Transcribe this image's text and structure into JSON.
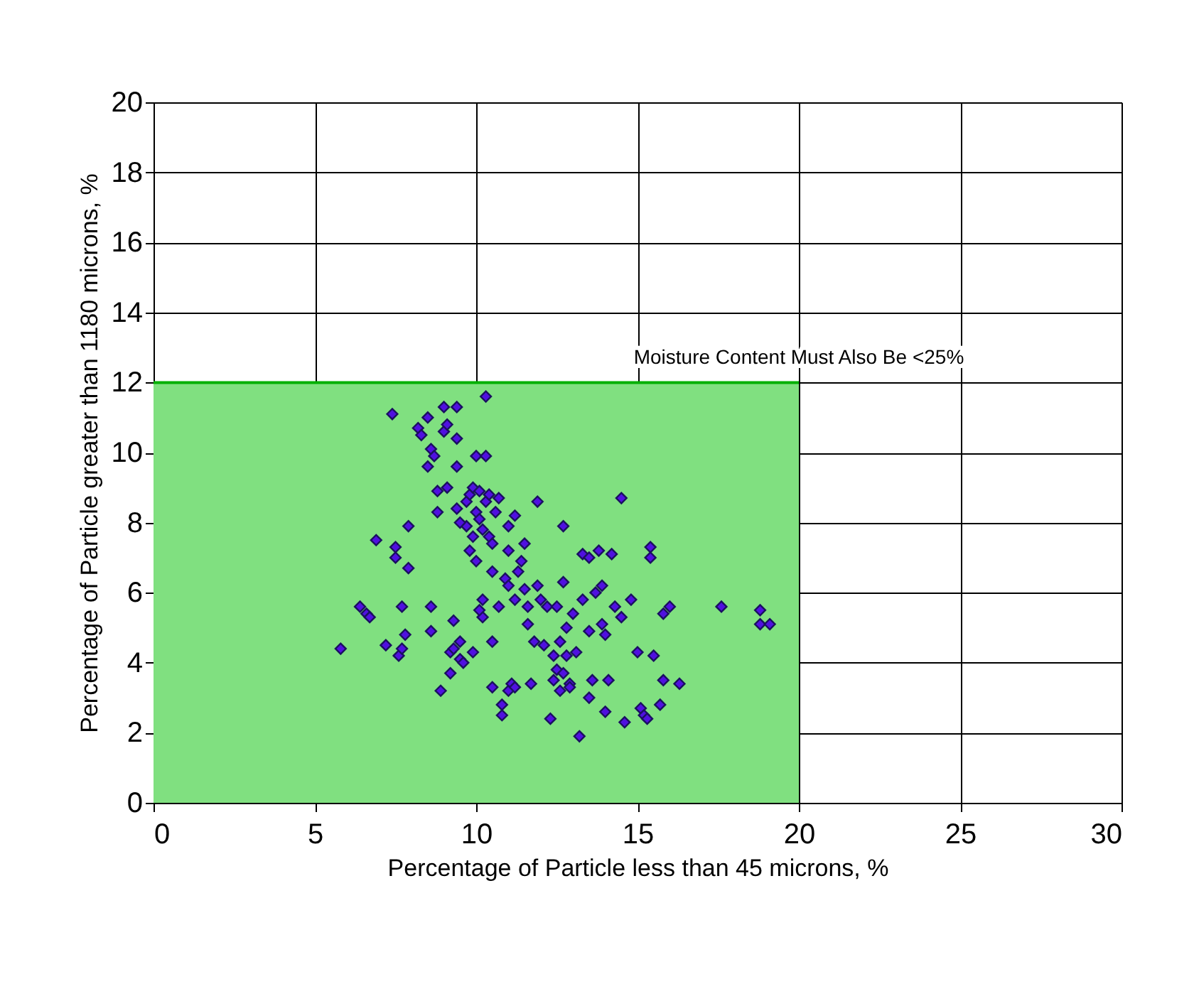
{
  "chart_data": {
    "type": "scatter",
    "xlabel": "Percentage of Particle less than 45 microns, %",
    "ylabel": "Percentage of Particle greater than 1180 microns, %",
    "xlim": [
      0,
      30
    ],
    "xticks": [
      0,
      5,
      10,
      15,
      20,
      25,
      30
    ],
    "ylim": [
      0,
      20
    ],
    "yticks": [
      0,
      2,
      4,
      6,
      8,
      10,
      12,
      14,
      16,
      18,
      20
    ],
    "grid": true,
    "marker": "diamond",
    "legend": false,
    "annotations": [
      {
        "text": "Moisture Content Must Also Be <25%",
        "x": 20,
        "y": 12
      }
    ],
    "series": [
      {
        "type": "area",
        "marker": "none",
        "color": "#80e080",
        "x": [
          0,
          20
        ],
        "values": [
          12,
          12
        ]
      },
      {
        "color": "#5010e0",
        "x": [
          5.8,
          6.4,
          6.6,
          6.7,
          6.9,
          7.2,
          7.4,
          7.5,
          7.5,
          7.6,
          7.7,
          7.7,
          7.8,
          7.9,
          7.9,
          8.2,
          8.3,
          8.5,
          8.5,
          8.6,
          8.6,
          8.6,
          8.7,
          8.8,
          8.8,
          8.9,
          9.0,
          9.0,
          9.1,
          9.1,
          9.2,
          9.2,
          9.3,
          9.3,
          9.4,
          9.4,
          9.4,
          9.4,
          9.5,
          9.5,
          9.6,
          9.7,
          9.7,
          9.8,
          9.8,
          9.9,
          9.9,
          10.0,
          10.0,
          10.0,
          10.1,
          10.1,
          10.2,
          10.2,
          10.2,
          10.3,
          10.3,
          10.3,
          10.4,
          10.5,
          10.5,
          10.5,
          10.5,
          10.6,
          10.7,
          10.7,
          10.8,
          10.8,
          10.9,
          11.0,
          11.0,
          11.0,
          11.1,
          11.2,
          11.2,
          11.2,
          11.3,
          11.4,
          11.5,
          11.5,
          11.6,
          11.7,
          11.8,
          11.9,
          11.9,
          12.0,
          12.2,
          12.4,
          12.4,
          12.5,
          12.5,
          12.6,
          12.6,
          12.7,
          12.7,
          12.8,
          12.8,
          12.9,
          13.0,
          13.1,
          13.2,
          13.3,
          13.3,
          13.5,
          13.5,
          13.6,
          13.7,
          13.8,
          13.9,
          14.0,
          14.1,
          14.3,
          14.5,
          14.5,
          14.6,
          14.8,
          15.0,
          15.1,
          15.2,
          15.4,
          15.4,
          15.5,
          15.8,
          16.0,
          16.3,
          17.6,
          18.8,
          18.8,
          19.1,
          15.7,
          15.3,
          12.3,
          14.0,
          15.8,
          13.5,
          12.9,
          14.2,
          13.9,
          11.6,
          10.1,
          9.9,
          11.0,
          10.4,
          9.5,
          12.1,
          12.7
        ],
        "values": [
          4.4,
          5.6,
          5.4,
          5.3,
          7.5,
          4.5,
          11.1,
          7.3,
          7.0,
          4.2,
          4.4,
          5.6,
          4.8,
          7.9,
          6.7,
          10.7,
          10.5,
          11.0,
          9.6,
          10.1,
          5.6,
          4.9,
          9.9,
          8.9,
          8.3,
          3.2,
          11.3,
          10.6,
          10.8,
          9.0,
          3.7,
          4.3,
          5.2,
          4.4,
          11.3,
          10.4,
          9.6,
          8.4,
          4.6,
          4.1,
          4.0,
          8.6,
          7.9,
          8.8,
          7.2,
          9.0,
          7.6,
          9.9,
          8.3,
          6.9,
          8.9,
          8.1,
          7.8,
          5.8,
          5.3,
          11.6,
          9.9,
          8.6,
          7.6,
          7.4,
          6.6,
          4.6,
          3.3,
          8.3,
          8.7,
          5.6,
          2.8,
          2.5,
          6.4,
          7.9,
          6.2,
          3.2,
          3.4,
          8.2,
          5.8,
          3.3,
          6.6,
          6.9,
          7.4,
          6.1,
          5.6,
          3.4,
          4.6,
          8.6,
          6.2,
          5.8,
          5.6,
          4.2,
          3.5,
          5.6,
          3.8,
          4.6,
          3.2,
          7.9,
          6.3,
          5.0,
          4.2,
          3.4,
          5.4,
          4.3,
          1.9,
          7.1,
          5.8,
          7.0,
          4.9,
          3.5,
          6.0,
          7.2,
          5.1,
          4.8,
          3.5,
          5.6,
          8.7,
          5.3,
          2.3,
          5.8,
          4.3,
          2.7,
          2.5,
          7.3,
          7.0,
          4.2,
          5.4,
          5.6,
          3.4,
          5.6,
          5.5,
          5.1,
          5.1,
          2.8,
          2.4,
          2.4,
          2.6,
          3.5,
          3.0,
          3.3,
          7.1,
          6.2,
          5.1,
          5.5,
          4.3,
          7.2,
          8.8,
          8.0,
          4.5,
          3.7
        ]
      }
    ]
  }
}
